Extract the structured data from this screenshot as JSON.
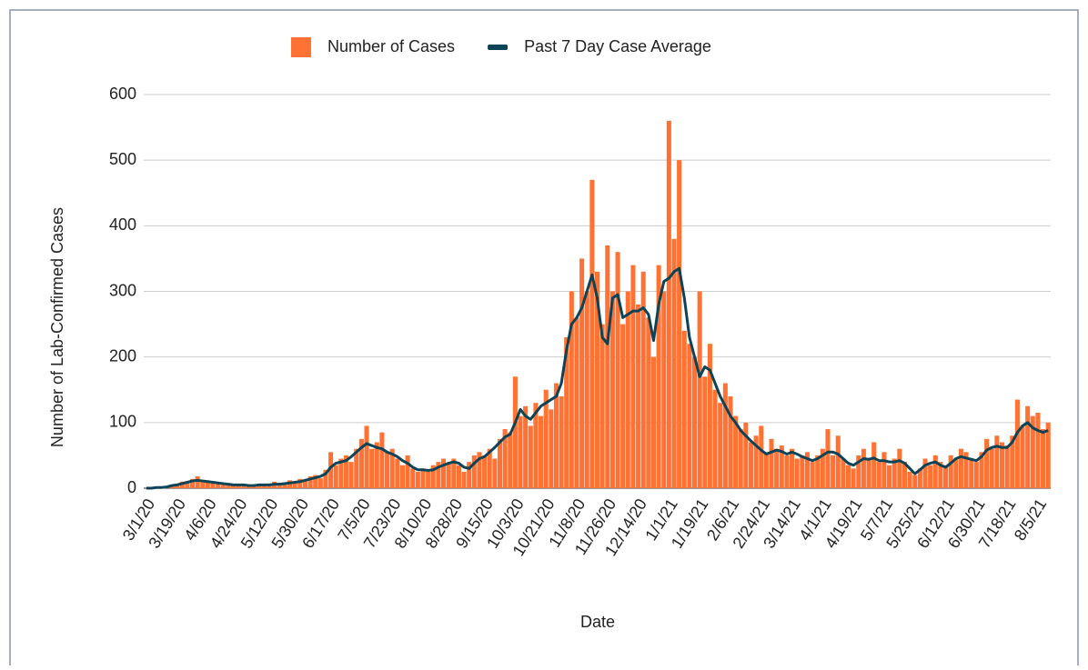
{
  "chart_data": {
    "type": "bar",
    "x_label": "Date",
    "y_label": "Number of Lab-Confirmed Cases",
    "ylim": [
      0,
      600
    ],
    "yticks": [
      0,
      100,
      200,
      300,
      400,
      500,
      600
    ],
    "grid": true,
    "legend": "top",
    "categories": [
      "3/1/20",
      null,
      null,
      null,
      null,
      null,
      "3/19/20",
      null,
      null,
      null,
      null,
      null,
      "4/6/20",
      null,
      null,
      null,
      null,
      null,
      "4/24/20",
      null,
      null,
      null,
      null,
      null,
      "5/12/20",
      null,
      null,
      null,
      null,
      null,
      "5/30/20",
      null,
      null,
      null,
      null,
      null,
      "6/17/20",
      null,
      null,
      null,
      null,
      null,
      "7/5/20",
      null,
      null,
      null,
      null,
      null,
      "7/23/20",
      null,
      null,
      null,
      null,
      null,
      "8/10/20",
      null,
      null,
      null,
      null,
      null,
      "8/28/20",
      null,
      null,
      null,
      null,
      null,
      "9/15/20",
      null,
      null,
      null,
      null,
      null,
      "10/3/20",
      null,
      null,
      null,
      null,
      null,
      "10/21/20",
      null,
      null,
      null,
      null,
      null,
      "11/8/20",
      null,
      null,
      null,
      null,
      null,
      "11/26/20",
      null,
      null,
      null,
      null,
      null,
      "12/14/20",
      null,
      null,
      null,
      null,
      null,
      "1/1/21",
      null,
      null,
      null,
      null,
      null,
      "1/19/21",
      null,
      null,
      null,
      null,
      null,
      "2/6/21",
      null,
      null,
      null,
      null,
      null,
      "2/24/21",
      null,
      null,
      null,
      null,
      null,
      "3/14/21",
      null,
      null,
      null,
      null,
      null,
      "4/1/21",
      null,
      null,
      null,
      null,
      null,
      "4/19/21",
      null,
      null,
      null,
      null,
      null,
      "5/7/21",
      null,
      null,
      null,
      null,
      null,
      "5/25/21",
      null,
      null,
      null,
      null,
      null,
      "6/12/21",
      null,
      null,
      null,
      null,
      null,
      "6/30/21",
      null,
      null,
      null,
      null,
      null,
      "7/18/21",
      null,
      null,
      null,
      null,
      null,
      "8/5/21",
      null,
      null
    ],
    "series": [
      {
        "name": "Number of Cases",
        "type": "bar",
        "color": "#ff7233",
        "values": [
          0,
          0,
          1,
          2,
          3,
          5,
          6,
          10,
          8,
          14,
          18,
          12,
          10,
          8,
          7,
          5,
          6,
          4,
          6,
          4,
          5,
          3,
          6,
          5,
          7,
          10,
          6,
          8,
          12,
          9,
          14,
          12,
          18,
          20,
          15,
          28,
          55,
          35,
          45,
          50,
          40,
          60,
          75,
          95,
          60,
          70,
          85,
          55,
          60,
          45,
          35,
          50,
          30,
          25,
          30,
          25,
          35,
          40,
          45,
          38,
          45,
          35,
          25,
          40,
          50,
          55,
          50,
          60,
          45,
          75,
          90,
          85,
          170,
          110,
          125,
          95,
          130,
          110,
          150,
          120,
          160,
          140,
          230,
          300,
          260,
          350,
          300,
          470,
          330,
          250,
          370,
          300,
          360,
          250,
          300,
          340,
          280,
          330,
          260,
          200,
          340,
          300,
          560,
          380,
          500,
          240,
          220,
          200,
          300,
          170,
          220,
          150,
          130,
          160,
          140,
          110,
          90,
          100,
          70,
          80,
          95,
          55,
          75,
          60,
          65,
          50,
          60,
          45,
          50,
          55,
          40,
          50,
          60,
          90,
          50,
          80,
          45,
          35,
          30,
          50,
          60,
          45,
          70,
          40,
          55,
          35,
          45,
          60,
          40,
          25,
          20,
          30,
          45,
          35,
          50,
          40,
          35,
          50,
          45,
          60,
          55,
          45,
          40,
          55,
          75,
          60,
          80,
          70,
          65,
          80,
          135,
          95,
          125,
          110,
          115,
          90,
          100
        ]
      },
      {
        "name": "Past 7 Day Case Average",
        "type": "line",
        "color": "#0d4356",
        "values": [
          0,
          0,
          1,
          1,
          2,
          4,
          5,
          7,
          9,
          11,
          12,
          11,
          10,
          9,
          8,
          7,
          6,
          5,
          5,
          5,
          4,
          4,
          5,
          5,
          5,
          6,
          6,
          7,
          8,
          9,
          10,
          12,
          14,
          16,
          18,
          22,
          32,
          38,
          40,
          42,
          48,
          55,
          62,
          68,
          65,
          62,
          60,
          55,
          52,
          48,
          42,
          38,
          32,
          28,
          28,
          27,
          28,
          32,
          35,
          38,
          40,
          38,
          32,
          30,
          38,
          45,
          48,
          55,
          62,
          70,
          78,
          82,
          100,
          120,
          110,
          105,
          115,
          125,
          130,
          135,
          140,
          160,
          210,
          250,
          260,
          275,
          300,
          325,
          290,
          230,
          220,
          290,
          295,
          260,
          265,
          270,
          270,
          275,
          265,
          225,
          280,
          315,
          320,
          330,
          335,
          290,
          230,
          200,
          170,
          185,
          180,
          160,
          140,
          125,
          110,
          100,
          88,
          80,
          72,
          65,
          58,
          52,
          55,
          58,
          56,
          52,
          55,
          52,
          48,
          45,
          42,
          45,
          50,
          55,
          55,
          52,
          45,
          38,
          35,
          40,
          45,
          44,
          46,
          42,
          42,
          40,
          40,
          42,
          38,
          30,
          22,
          28,
          35,
          38,
          40,
          35,
          32,
          38,
          45,
          48,
          46,
          44,
          42,
          48,
          58,
          62,
          64,
          62,
          62,
          70,
          85,
          95,
          100,
          92,
          88,
          85,
          88
        ]
      }
    ]
  }
}
